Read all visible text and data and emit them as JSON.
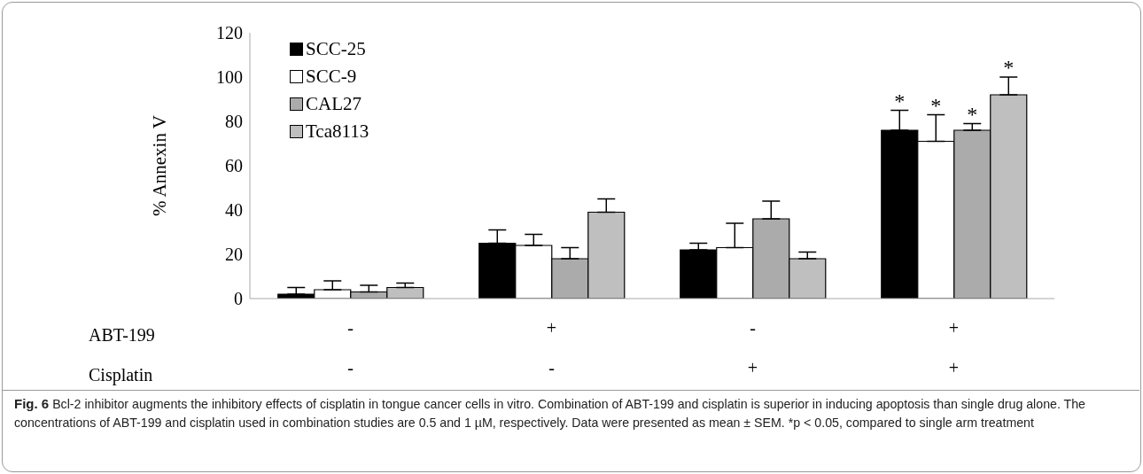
{
  "chart_data": {
    "type": "bar",
    "categories": [
      "-\n-",
      "+\n-",
      "-\n+",
      "+\n+"
    ],
    "ylabel": "% Annexin V",
    "ylim": [
      0,
      120
    ],
    "yticks": [
      0,
      20,
      40,
      60,
      80,
      100,
      120
    ],
    "grid": false,
    "legend": "top left",
    "series": [
      {
        "name": "SCC-25",
        "color": "#000000",
        "values": [
          2,
          25,
          22,
          76
        ],
        "errors": [
          3,
          6,
          3,
          9
        ],
        "value_labels": [
          null,
          null,
          null,
          "*"
        ]
      },
      {
        "name": "SCC-9",
        "color": "#ffffff",
        "values": [
          4,
          24,
          23,
          71
        ],
        "errors": [
          4,
          5,
          11,
          12
        ],
        "value_labels": [
          null,
          null,
          null,
          "*"
        ]
      },
      {
        "name": "CAL27",
        "color": "#ababab",
        "values": [
          3,
          18,
          36,
          76
        ],
        "errors": [
          3,
          5,
          8,
          3
        ],
        "value_labels": [
          null,
          null,
          null,
          "*"
        ]
      },
      {
        "name": "Tca8113",
        "color": "#bfbfbf",
        "values": [
          5,
          39,
          18,
          92
        ],
        "errors": [
          2,
          6,
          3,
          8
        ],
        "value_labels": [
          null,
          null,
          null,
          "*"
        ]
      }
    ],
    "annotations": [
      "ABT-199",
      "Cisplatin",
      "Fig. 6",
      "Bcl-2 inhibitor augments the inhibitory effects of cisplatin in tongue cancer cells in vitro. Combination of ABT-199 and cisplatin is superior in inducing apoptosis than single drug alone. The concentrations of ABT-199 and cisplatin used in combination studies are 0.5 and 1 µM, respectively. Data were presented as mean ± SEM. *p < 0.05, compared to single arm treatment"
    ]
  }
}
